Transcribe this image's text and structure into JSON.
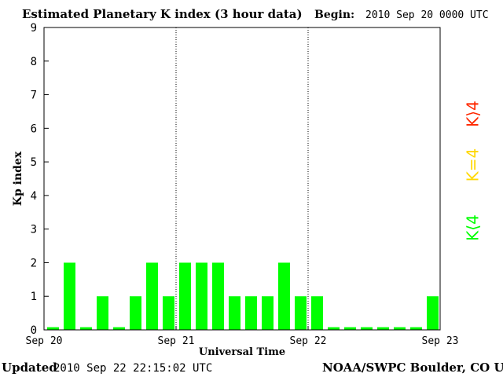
{
  "header": {
    "title": "Estimated Planetary K index (3 hour data)",
    "begin_label": "Begin:",
    "begin_value": "2010 Sep 20 0000 UTC"
  },
  "footer": {
    "updated_label": "Updated",
    "updated_value": "2010 Sep 22 22:15:02 UTC",
    "credit": "NOAA/SWPC Boulder, CO USA"
  },
  "colors": {
    "low": "#00ff00",
    "moderate": "#ffd800",
    "high": "#ff2800"
  },
  "legend": [
    {
      "label": "K⟨4",
      "color": "#00ff00"
    },
    {
      "label": "K=4",
      "color": "#ffd800"
    },
    {
      "label": "K⟩4",
      "color": "#ff2800"
    }
  ],
  "chart_data": {
    "type": "bar",
    "title": "Estimated Planetary K index (3 hour data)",
    "xlabel": "Universal Time",
    "ylabel": "Kp index",
    "ylim": [
      0,
      9
    ],
    "yticks": [
      "0",
      "1",
      "2",
      "3",
      "4",
      "5",
      "6",
      "7",
      "8",
      "9"
    ],
    "xticks": [
      "Sep 20",
      "Sep 21",
      "Sep 22",
      "Sep 23"
    ],
    "day_separators": [
      "Sep 21",
      "Sep 22"
    ],
    "interval_hours": 3,
    "values": [
      0,
      2,
      0,
      1,
      0,
      1,
      2,
      1,
      2,
      2,
      2,
      1,
      1,
      1,
      2,
      1,
      1,
      0,
      0,
      0,
      0,
      0,
      0,
      1
    ]
  }
}
